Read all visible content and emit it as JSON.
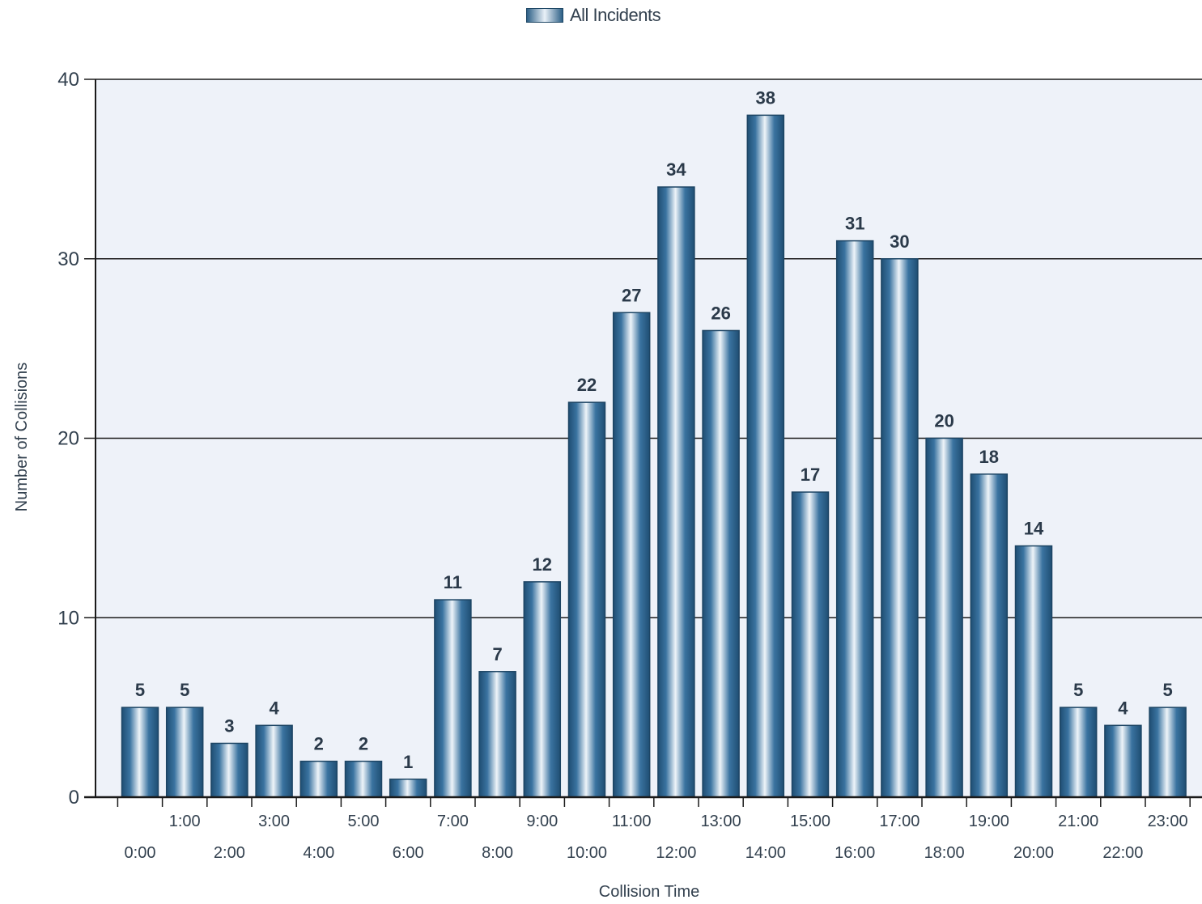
{
  "legend": {
    "label": "All Incidents"
  },
  "colors": {
    "bar_dark": "#2c5f86",
    "bar_light": "#eef4f9",
    "plot_bg": "#eef2f9",
    "grid": "#1a1a1a",
    "axis_text": "#33414f",
    "label_text": "#2b3a4a"
  },
  "chart_data": {
    "type": "bar",
    "title": "",
    "xlabel": "Collision Time",
    "ylabel": "Number of Collisions",
    "ylim": [
      0,
      40
    ],
    "yticks": [
      0,
      10,
      20,
      30,
      40
    ],
    "grid": true,
    "legend_position": "top-center",
    "categories": [
      "0:00",
      "1:00",
      "2:00",
      "3:00",
      "4:00",
      "5:00",
      "6:00",
      "7:00",
      "8:00",
      "9:00",
      "10:00",
      "11:00",
      "12:00",
      "13:00",
      "14:00",
      "15:00",
      "16:00",
      "17:00",
      "18:00",
      "19:00",
      "20:00",
      "21:00",
      "22:00",
      "23:00"
    ],
    "series": [
      {
        "name": "All Incidents",
        "values": [
          5,
          5,
          3,
          4,
          2,
          2,
          1,
          11,
          7,
          12,
          22,
          27,
          34,
          26,
          38,
          17,
          31,
          30,
          20,
          18,
          14,
          5,
          4,
          5
        ]
      }
    ]
  }
}
